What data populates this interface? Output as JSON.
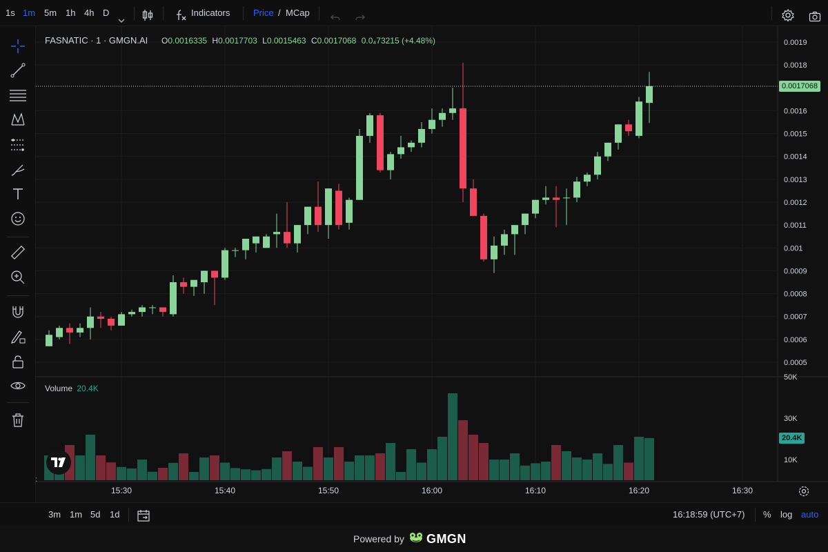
{
  "toolbar": {
    "intervals": [
      {
        "label": "1s",
        "active": false
      },
      {
        "label": "1m",
        "active": true
      },
      {
        "label": "5m",
        "active": false
      },
      {
        "label": "1h",
        "active": false
      },
      {
        "label": "4h",
        "active": false
      },
      {
        "label": "D",
        "active": false
      }
    ],
    "indicators_label": "Indicators",
    "price_label": "Price",
    "slash": "/",
    "mcap_label": "MCap"
  },
  "legend": {
    "symbol": "FASNATIC · 1 · GMGN.AI",
    "o_label": "O",
    "o_value": "0.0016335",
    "h_label": "H",
    "h_value": "0.0017703",
    "l_label": "L",
    "l_value": "0.0015463",
    "c_label": "C",
    "c_value": "0.0017068",
    "change": "0.0₄73215 (+4.48%)",
    "volume_label": "Volume",
    "volume_value": "20.4K"
  },
  "price_axis": {
    "ticks": [
      "0.0019",
      "0.0018",
      "0.0016",
      "0.0015",
      "0.0014",
      "0.0013",
      "0.0012",
      "0.0011",
      "0.001",
      "0.0009",
      "0.0008",
      "0.0007",
      "0.0006",
      "0.0005"
    ],
    "last_price": "0.0017068"
  },
  "volume_axis": {
    "ticks": [
      "50K",
      "30K",
      "10K"
    ],
    "last_volume": "20.4K"
  },
  "time_axis": {
    "ticks": [
      "15:30",
      "15:40",
      "15:50",
      "16:00",
      "16:10",
      "16:20",
      "16:30"
    ]
  },
  "bottombar": {
    "ranges": [
      "3m",
      "1m",
      "5d",
      "1d"
    ],
    "clock": "16:18:59 (UTC+7)",
    "percent": "%",
    "log": "log",
    "auto": "auto"
  },
  "footer": {
    "powered": "Powered by",
    "brand": "GMGN"
  },
  "colors": {
    "up": "#89d59c",
    "down": "#f0455f",
    "vol_up": "#1c5c4a",
    "vol_down": "#7a2a37",
    "accent": "#2962ff"
  },
  "chart_data": {
    "type": "candlestick",
    "x_start": "15:23",
    "interval_minutes": 1,
    "candles": [
      {
        "o": 0.00057,
        "h": 0.00064,
        "l": 0.00057,
        "c": 0.00062,
        "v": 12000
      },
      {
        "o": 0.00061,
        "h": 0.00066,
        "l": 0.0006,
        "c": 0.00065,
        "v": 13000
      },
      {
        "o": 0.00065,
        "h": 0.00067,
        "l": 0.00058,
        "c": 0.00063,
        "v": 17000
      },
      {
        "o": 0.00063,
        "h": 0.00067,
        "l": 0.00061,
        "c": 0.00065,
        "v": 12000
      },
      {
        "o": 0.00065,
        "h": 0.00074,
        "l": 0.0006,
        "c": 0.0007,
        "v": 22000
      },
      {
        "o": 0.0007,
        "h": 0.00072,
        "l": 0.00065,
        "c": 0.00069,
        "v": 12000
      },
      {
        "o": 0.00069,
        "h": 0.0007,
        "l": 0.00064,
        "c": 0.00066,
        "v": 8600
      },
      {
        "o": 0.00066,
        "h": 0.00072,
        "l": 0.00066,
        "c": 0.00071,
        "v": 6400
      },
      {
        "o": 0.00071,
        "h": 0.00073,
        "l": 0.0007,
        "c": 0.00072,
        "v": 5700
      },
      {
        "o": 0.00072,
        "h": 0.00075,
        "l": 0.0007,
        "c": 0.00074,
        "v": 10000
      },
      {
        "o": 0.00074,
        "h": 0.00075,
        "l": 0.00071,
        "c": 0.00074,
        "v": 4100
      },
      {
        "o": 0.00074,
        "h": 0.00074,
        "l": 0.0007,
        "c": 0.00072,
        "v": 6000
      },
      {
        "o": 0.00071,
        "h": 0.00088,
        "l": 0.0007,
        "c": 0.00085,
        "v": 8400
      },
      {
        "o": 0.00085,
        "h": 0.00087,
        "l": 0.0008,
        "c": 0.00083,
        "v": 13000
      },
      {
        "o": 0.00083,
        "h": 0.00086,
        "l": 0.00079,
        "c": 0.00086,
        "v": 4000
      },
      {
        "o": 0.00085,
        "h": 0.0009,
        "l": 0.0008,
        "c": 0.0009,
        "v": 11000
      },
      {
        "o": 0.0009,
        "h": 0.0009,
        "l": 0.00075,
        "c": 0.00087,
        "v": 12000
      },
      {
        "o": 0.00087,
        "h": 0.001,
        "l": 0.00086,
        "c": 0.00099,
        "v": 8500
      },
      {
        "o": 0.00099,
        "h": 0.001,
        "l": 0.00096,
        "c": 0.00099,
        "v": 5900
      },
      {
        "o": 0.00099,
        "h": 0.00104,
        "l": 0.00095,
        "c": 0.00104,
        "v": 5300
      },
      {
        "o": 0.00102,
        "h": 0.00105,
        "l": 0.00098,
        "c": 0.00105,
        "v": 4800
      },
      {
        "o": 0.001,
        "h": 0.00106,
        "l": 0.001,
        "c": 0.00105,
        "v": 5400
      },
      {
        "o": 0.00106,
        "h": 0.00115,
        "l": 0.001,
        "c": 0.00107,
        "v": 11000
      },
      {
        "o": 0.00107,
        "h": 0.0012,
        "l": 0.001,
        "c": 0.00102,
        "v": 14000
      },
      {
        "o": 0.00102,
        "h": 0.0011,
        "l": 0.00098,
        "c": 0.0011,
        "v": 9000
      },
      {
        "o": 0.0011,
        "h": 0.00118,
        "l": 0.00106,
        "c": 0.00118,
        "v": 6500
      },
      {
        "o": 0.00118,
        "h": 0.00129,
        "l": 0.00107,
        "c": 0.0011,
        "v": 16000
      },
      {
        "o": 0.0011,
        "h": 0.00126,
        "l": 0.00104,
        "c": 0.00126,
        "v": 11000
      },
      {
        "o": 0.00125,
        "h": 0.00128,
        "l": 0.00108,
        "c": 0.0011,
        "v": 16000
      },
      {
        "o": 0.00111,
        "h": 0.00122,
        "l": 0.00108,
        "c": 0.00121,
        "v": 9000
      },
      {
        "o": 0.00121,
        "h": 0.00152,
        "l": 0.00121,
        "c": 0.00149,
        "v": 12000
      },
      {
        "o": 0.00149,
        "h": 0.00159,
        "l": 0.00146,
        "c": 0.00158,
        "v": 12000
      },
      {
        "o": 0.00158,
        "h": 0.00159,
        "l": 0.00133,
        "c": 0.00134,
        "v": 13000
      },
      {
        "o": 0.00134,
        "h": 0.00142,
        "l": 0.0013,
        "c": 0.00141,
        "v": 18000
      },
      {
        "o": 0.00141,
        "h": 0.00149,
        "l": 0.00139,
        "c": 0.00144,
        "v": 4000
      },
      {
        "o": 0.00144,
        "h": 0.00147,
        "l": 0.00142,
        "c": 0.00146,
        "v": 15000
      },
      {
        "o": 0.00146,
        "h": 0.00155,
        "l": 0.00144,
        "c": 0.00152,
        "v": 8500
      },
      {
        "o": 0.00152,
        "h": 0.00161,
        "l": 0.0015,
        "c": 0.00156,
        "v": 15000
      },
      {
        "o": 0.00156,
        "h": 0.00161,
        "l": 0.00153,
        "c": 0.00159,
        "v": 21000
      },
      {
        "o": 0.00159,
        "h": 0.0017,
        "l": 0.00156,
        "c": 0.00161,
        "v": 42000
      },
      {
        "o": 0.00161,
        "h": 0.00181,
        "l": 0.0012,
        "c": 0.00126,
        "v": 29000
      },
      {
        "o": 0.00126,
        "h": 0.0013,
        "l": 0.00115,
        "c": 0.00114,
        "v": 22000
      },
      {
        "o": 0.00114,
        "h": 0.00115,
        "l": 0.00094,
        "c": 0.00095,
        "v": 18000
      },
      {
        "o": 0.00095,
        "h": 0.00105,
        "l": 0.00089,
        "c": 0.00101,
        "v": 10000
      },
      {
        "o": 0.00101,
        "h": 0.00108,
        "l": 0.00097,
        "c": 0.00106,
        "v": 10000
      },
      {
        "o": 0.00106,
        "h": 0.0011,
        "l": 0.00097,
        "c": 0.0011,
        "v": 13000
      },
      {
        "o": 0.0011,
        "h": 0.00115,
        "l": 0.00106,
        "c": 0.00115,
        "v": 7100
      },
      {
        "o": 0.00115,
        "h": 0.00121,
        "l": 0.00113,
        "c": 0.00121,
        "v": 8200
      },
      {
        "o": 0.00121,
        "h": 0.00127,
        "l": 0.00119,
        "c": 0.00122,
        "v": 9000
      },
      {
        "o": 0.00122,
        "h": 0.00127,
        "l": 0.00109,
        "c": 0.00121,
        "v": 17000
      },
      {
        "o": 0.00122,
        "h": 0.00126,
        "l": 0.0011,
        "c": 0.00122,
        "v": 14000
      },
      {
        "o": 0.00122,
        "h": 0.00131,
        "l": 0.0012,
        "c": 0.00129,
        "v": 11000
      },
      {
        "o": 0.00129,
        "h": 0.00133,
        "l": 0.00127,
        "c": 0.00132,
        "v": 10000
      },
      {
        "o": 0.00132,
        "h": 0.00142,
        "l": 0.0013,
        "c": 0.0014,
        "v": 13000
      },
      {
        "o": 0.0014,
        "h": 0.00146,
        "l": 0.00138,
        "c": 0.00146,
        "v": 7900
      },
      {
        "o": 0.00146,
        "h": 0.00154,
        "l": 0.00143,
        "c": 0.00154,
        "v": 17000
      },
      {
        "o": 0.00154,
        "h": 0.00156,
        "l": 0.00149,
        "c": 0.00151,
        "v": 8500
      },
      {
        "o": 0.00149,
        "h": 0.00166,
        "l": 0.00148,
        "c": 0.00164,
        "v": 21000
      },
      {
        "o": 0.001634,
        "h": 0.00177,
        "l": 0.001546,
        "c": 0.001707,
        "v": 20400
      }
    ],
    "ylim": [
      0.00045,
      0.00196
    ],
    "volume_max": 50000
  }
}
